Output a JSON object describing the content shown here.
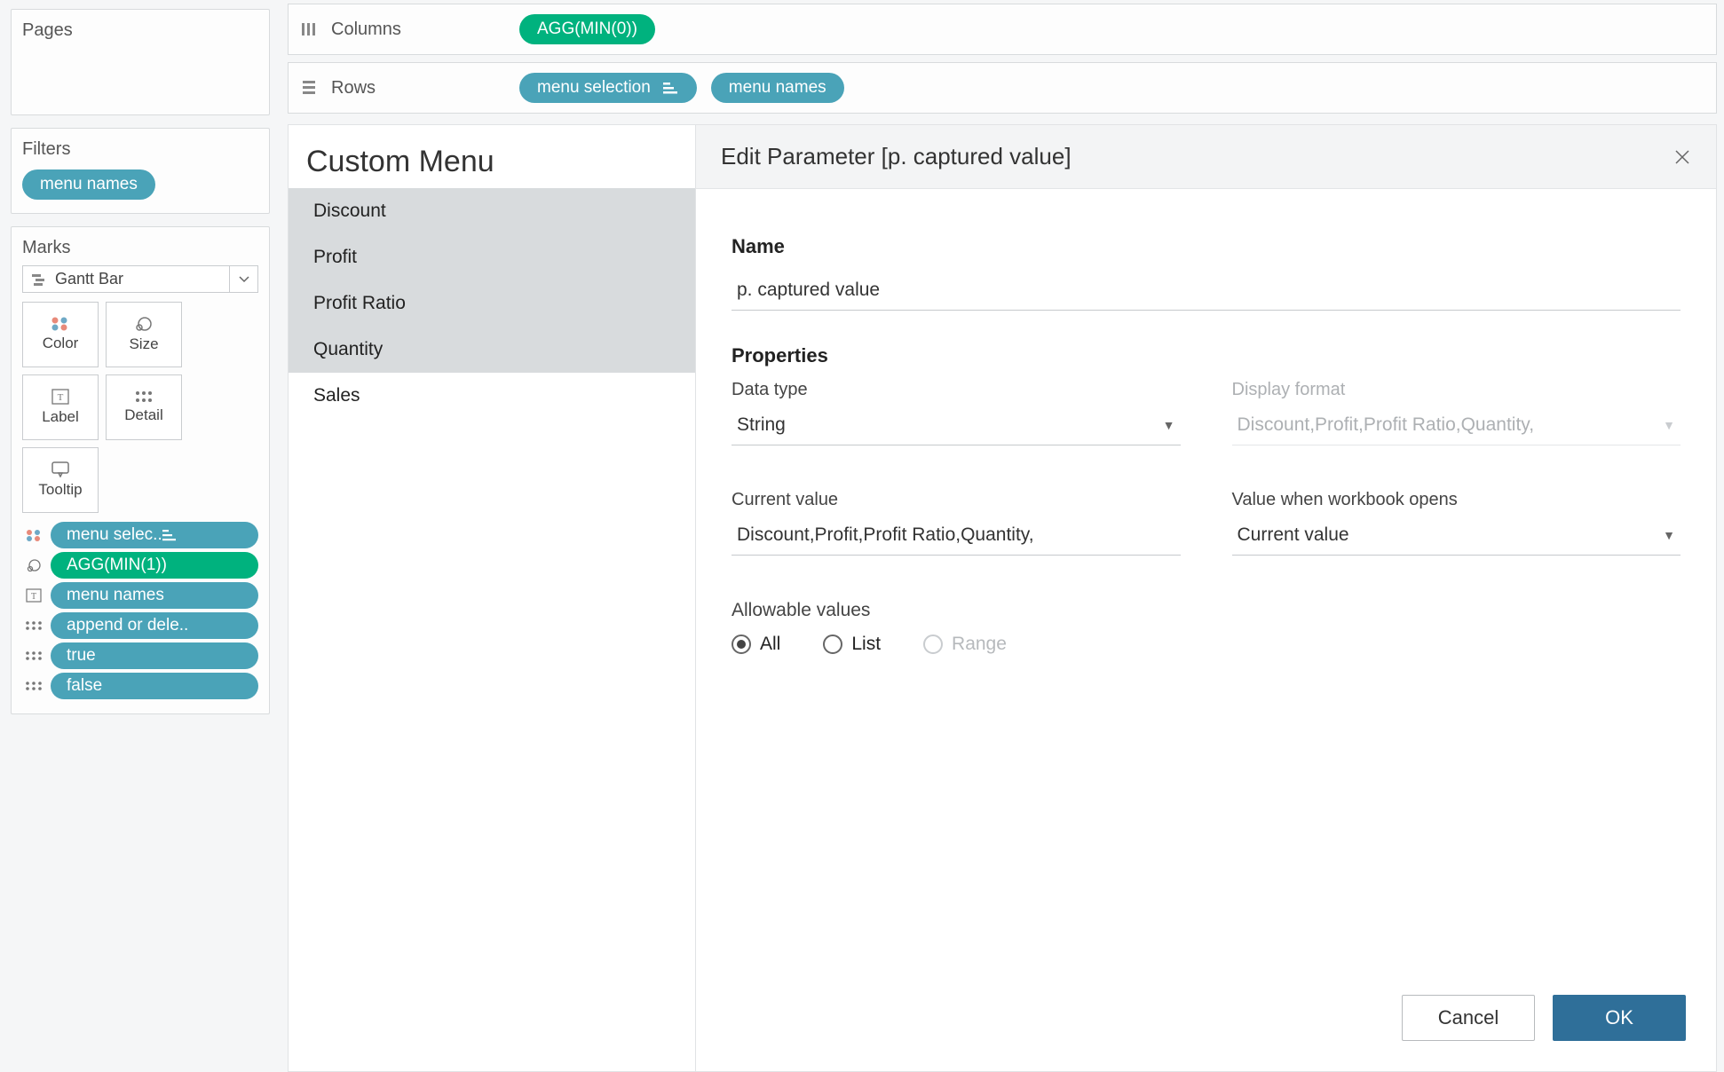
{
  "colors": {
    "teal": "#4aa3b8",
    "green": "#00b27e",
    "panel_border": "#d8dbdd",
    "text": "#333333",
    "muted": "#adb0b3",
    "primary_btn": "#2f6f99"
  },
  "side": {
    "pages_title": "Pages",
    "filters_title": "Filters",
    "filter_pill": "menu names",
    "marks_title": "Marks",
    "marks_type": "Gantt Bar",
    "mark_buttons": {
      "color": "Color",
      "size": "Size",
      "label": "Label",
      "detail": "Detail",
      "tooltip": "Tooltip"
    },
    "mark_rows": [
      {
        "icon": "color-dots",
        "label": "menu selec..",
        "color": "teal",
        "right_icon": true
      },
      {
        "icon": "size-circle",
        "label": "AGG(MIN(1))",
        "color": "green"
      },
      {
        "icon": "text-box",
        "label": "menu names",
        "color": "teal"
      },
      {
        "icon": "detail-dots",
        "label": "append or dele..",
        "color": "teal"
      },
      {
        "icon": "detail-dots",
        "label": "true",
        "color": "teal"
      },
      {
        "icon": "detail-dots",
        "label": "false",
        "color": "teal"
      }
    ]
  },
  "shelves": {
    "columns_label": "Columns",
    "columns_pill": "AGG(MIN(0))",
    "rows_label": "Rows",
    "rows_pills": [
      {
        "label": "menu selection",
        "right_icon": true
      },
      {
        "label": "menu names"
      }
    ]
  },
  "menu": {
    "title": "Custom Menu",
    "items": [
      "Discount",
      "Profit",
      "Profit Ratio",
      "Quantity",
      "Sales"
    ],
    "selected_through_index": 3
  },
  "dialog": {
    "title": "Edit Parameter [p. captured value]",
    "name_label": "Name",
    "name_value": "p. captured value",
    "properties_label": "Properties",
    "data_type_label": "Data type",
    "data_type_value": "String",
    "display_format_label": "Display format",
    "display_format_value": "Discount,Profit,Profit Ratio,Quantity,",
    "current_value_label": "Current value",
    "current_value_value": "Discount,Profit,Profit Ratio,Quantity,",
    "open_value_label": "Value when workbook opens",
    "open_value_value": "Current value",
    "allowable_label": "Allowable values",
    "radio_all": "All",
    "radio_list": "List",
    "radio_range": "Range",
    "cancel": "Cancel",
    "ok": "OK"
  }
}
